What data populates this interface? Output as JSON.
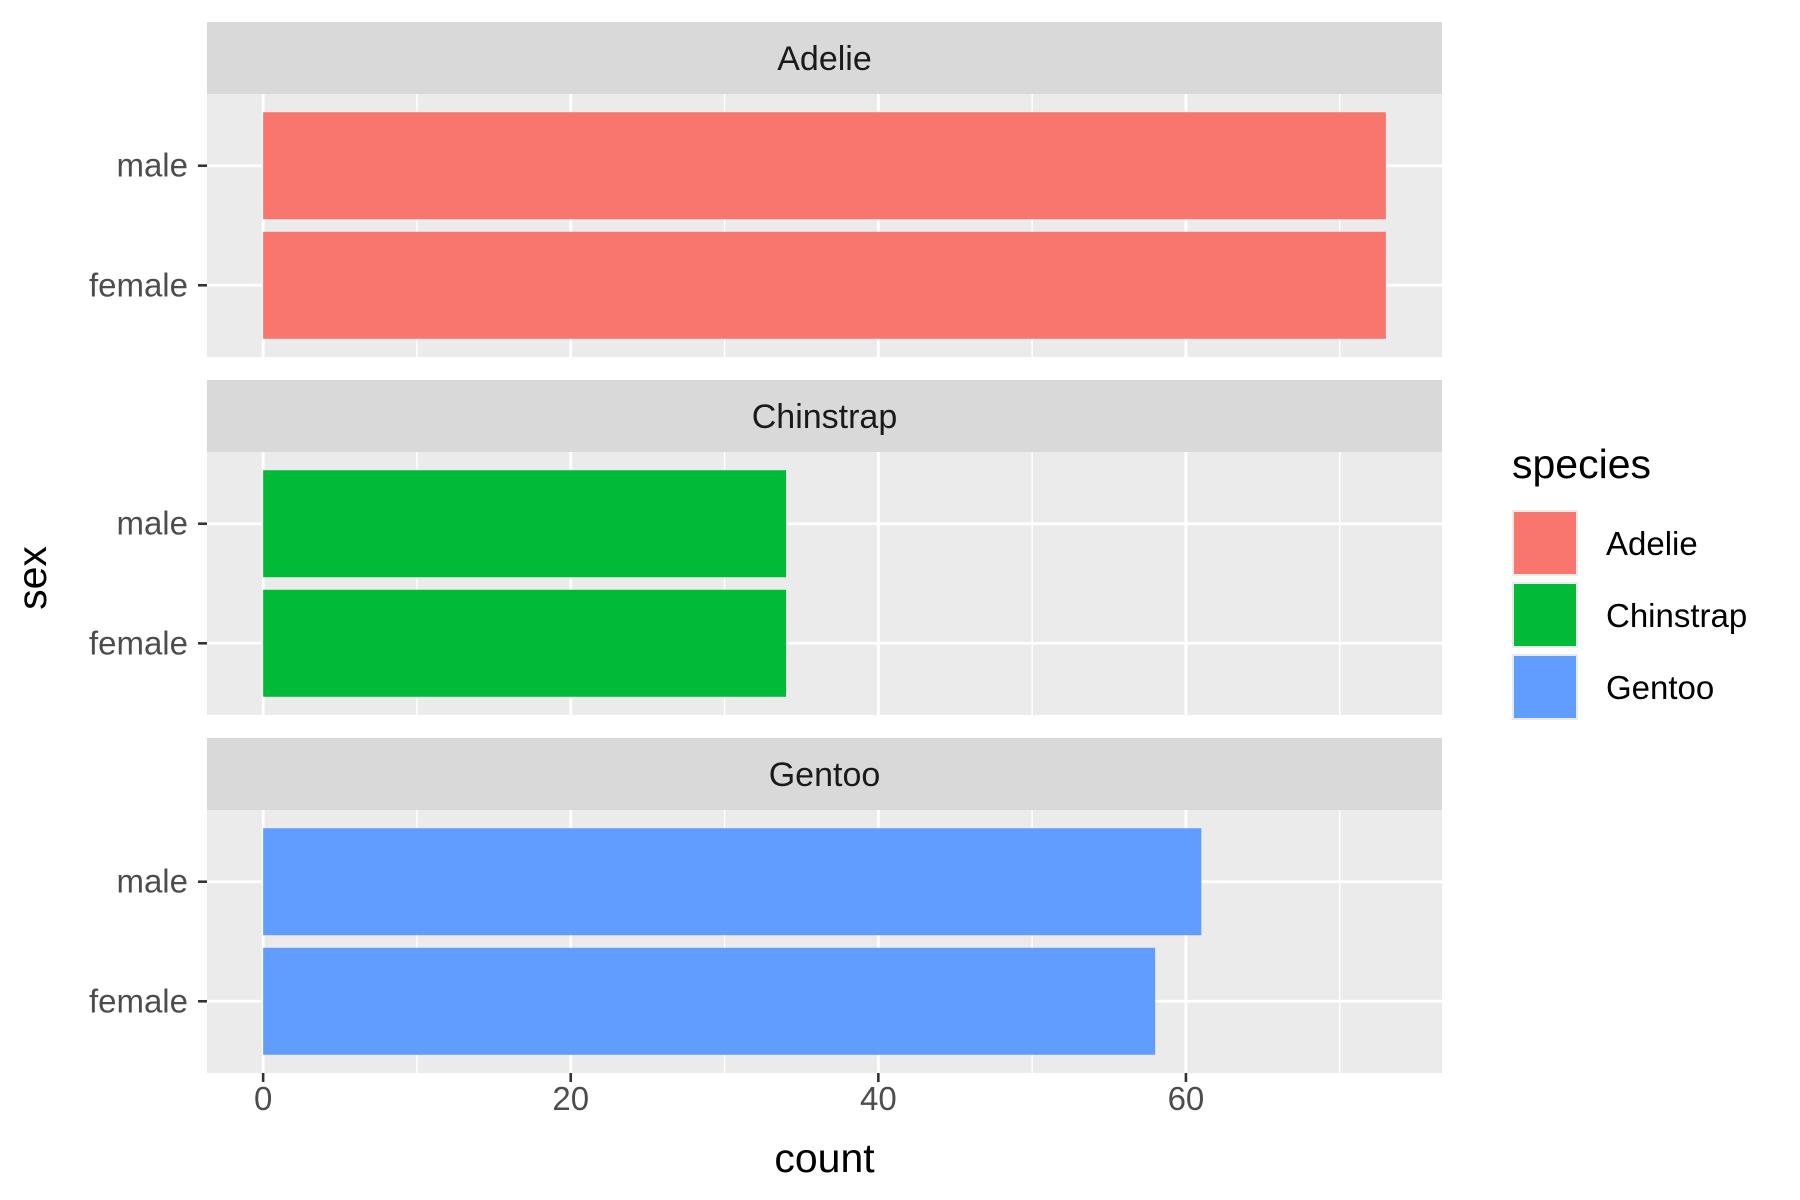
{
  "chart_data": {
    "type": "bar",
    "orientation": "horizontal",
    "facet_by": "species",
    "categories": [
      "male",
      "female"
    ],
    "facets": [
      {
        "name": "Adelie",
        "color": "#F8766D",
        "values": {
          "male": 73,
          "female": 73
        }
      },
      {
        "name": "Chinstrap",
        "color": "#00BA38",
        "values": {
          "male": 34,
          "female": 34
        }
      },
      {
        "name": "Gentoo",
        "color": "#619CFF",
        "values": {
          "male": 61,
          "female": 58
        }
      }
    ],
    "xlabel": "count",
    "ylabel": "sex",
    "xlim": [
      -3.65,
      76.65
    ],
    "xticks": [
      0,
      20,
      40,
      60
    ],
    "grid": true,
    "legend": {
      "title": "species",
      "placement": "right",
      "items": [
        {
          "label": "Adelie",
          "color": "#F8766D"
        },
        {
          "label": "Chinstrap",
          "color": "#00BA38"
        },
        {
          "label": "Gentoo",
          "color": "#619CFF"
        }
      ]
    },
    "colors": {
      "panel_background": "#EBEBEB",
      "strip_background": "#D9D9D9",
      "gridline": "#FFFFFF"
    }
  }
}
